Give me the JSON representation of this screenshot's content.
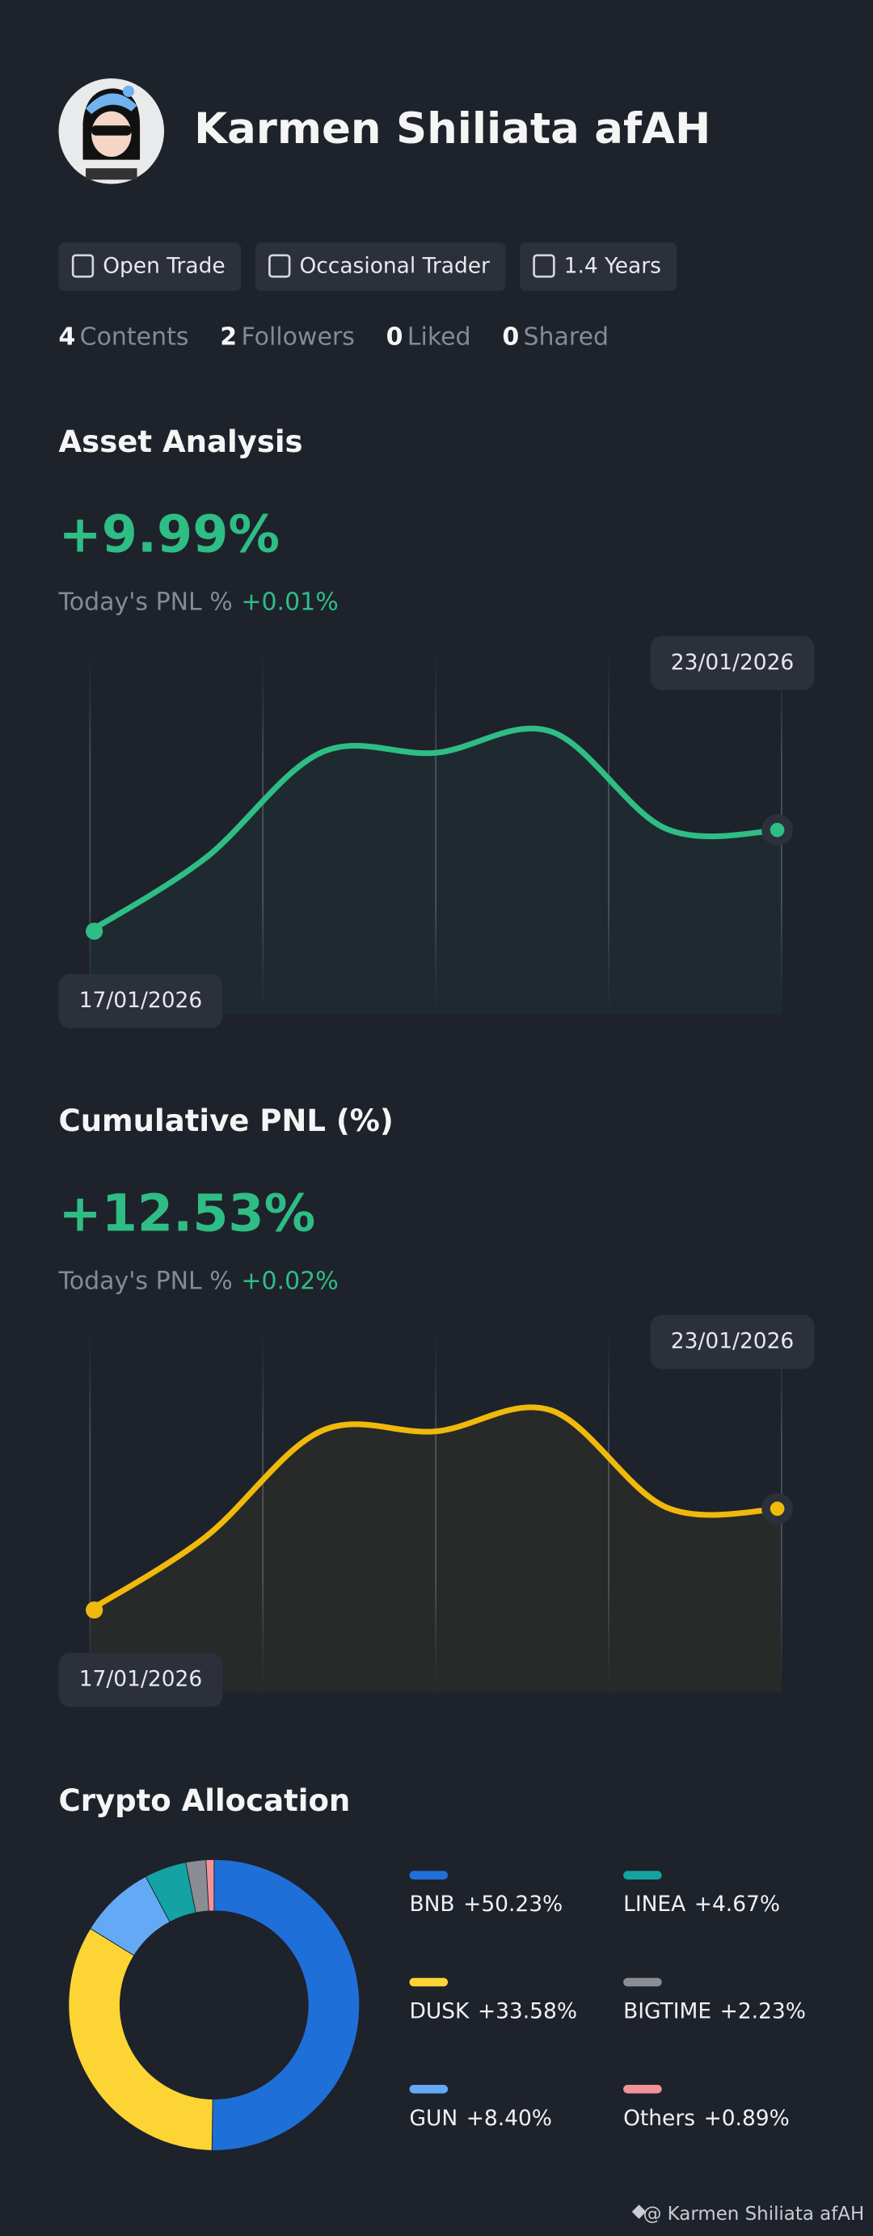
{
  "profile": {
    "name": "Karmen Shiliata afAH",
    "tags": [
      "Open Trade",
      "Occasional Trader",
      "1.4 Years"
    ],
    "stats": [
      {
        "count": 4,
        "label": "Contents"
      },
      {
        "count": 2,
        "label": "Followers"
      },
      {
        "count": 0,
        "label": "Liked"
      },
      {
        "count": 0,
        "label": "Shared"
      }
    ]
  },
  "chart_data": [
    {
      "type": "line",
      "title": "Asset Analysis",
      "headline": "+9.99%",
      "subtitle": "Today's PNL %",
      "subtitle_value": "+0.01%",
      "categories": [
        "17/01/2026",
        null,
        null,
        null,
        null,
        null,
        "23/01/2026"
      ],
      "values": [
        0,
        7.2,
        17.6,
        17.6,
        19.7,
        10.1,
        9.99
      ],
      "color": "#2ebd85"
    },
    {
      "type": "line",
      "title": "Cumulative PNL (%)",
      "headline": "+12.53%",
      "subtitle": "Today's PNL %",
      "subtitle_value": "+0.02%",
      "categories": [
        "17/01/2026",
        null,
        null,
        null,
        null,
        null,
        "23/01/2026"
      ],
      "values": [
        0,
        9.0,
        22.1,
        22.1,
        24.7,
        12.7,
        12.53
      ],
      "color": "#f0b90b"
    },
    {
      "type": "donut",
      "title": "Crypto Allocation",
      "series": [
        {
          "name": "BNB",
          "values": [
            50.23
          ],
          "value_labels": [
            "+50.23%"
          ],
          "color": "#1f6fd9"
        },
        {
          "name": "DUSK",
          "values": [
            33.58
          ],
          "value_labels": [
            "+33.58%"
          ],
          "color": "#fcd535"
        },
        {
          "name": "GUN",
          "values": [
            8.4
          ],
          "value_labels": [
            "+8.40%"
          ],
          "color": "#64a9f5"
        },
        {
          "name": "LINEA",
          "values": [
            4.67
          ],
          "value_labels": [
            "+4.67%"
          ],
          "color": "#13a3a3"
        },
        {
          "name": "BIGTIME",
          "values": [
            2.23
          ],
          "value_labels": [
            "+2.23%"
          ],
          "color": "#8a8d93"
        },
        {
          "name": "Others",
          "values": [
            0.89
          ],
          "value_labels": [
            "+0.89%"
          ],
          "color": "#f2939a"
        }
      ]
    }
  ],
  "footer": "@ Karmen Shiliata afAH"
}
